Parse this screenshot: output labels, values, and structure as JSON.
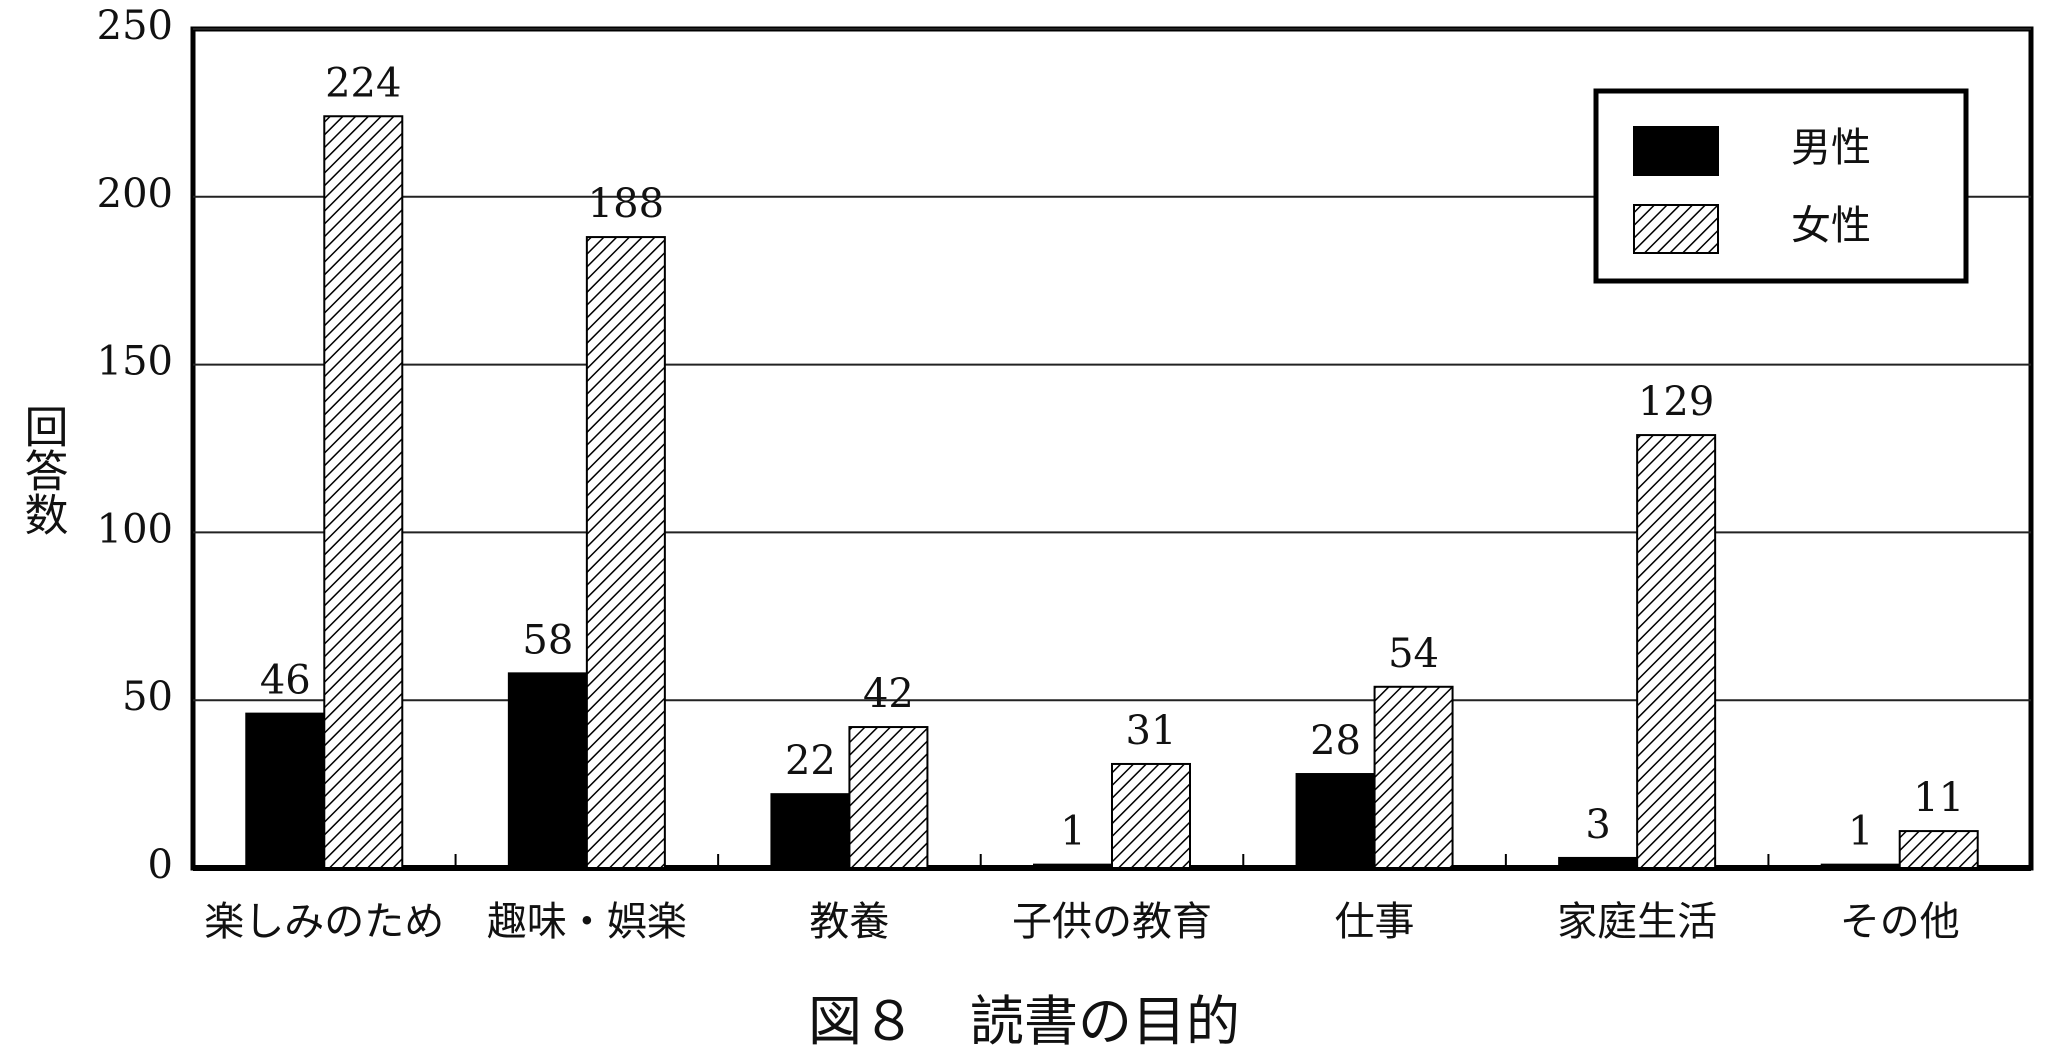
{
  "chart_data": {
    "type": "bar",
    "title": "図８　読書の目的",
    "y_label": "回答数",
    "categories": [
      "楽しみのため",
      "趣味・娯楽",
      "教養",
      "子供の教育",
      "仕事",
      "家庭生活",
      "その他"
    ],
    "series": [
      {
        "name": "男性",
        "color": "#000000",
        "hatch": false,
        "values": [
          46,
          58,
          22,
          1,
          28,
          3,
          1
        ]
      },
      {
        "name": "女性",
        "color": "#000000",
        "hatch": true,
        "values": [
          224,
          188,
          42,
          31,
          54,
          129,
          11
        ]
      }
    ],
    "ylim": [
      0,
      250
    ],
    "yticks": [
      0,
      50,
      100,
      150,
      200,
      250
    ],
    "grid": true,
    "legend": "top-right"
  }
}
